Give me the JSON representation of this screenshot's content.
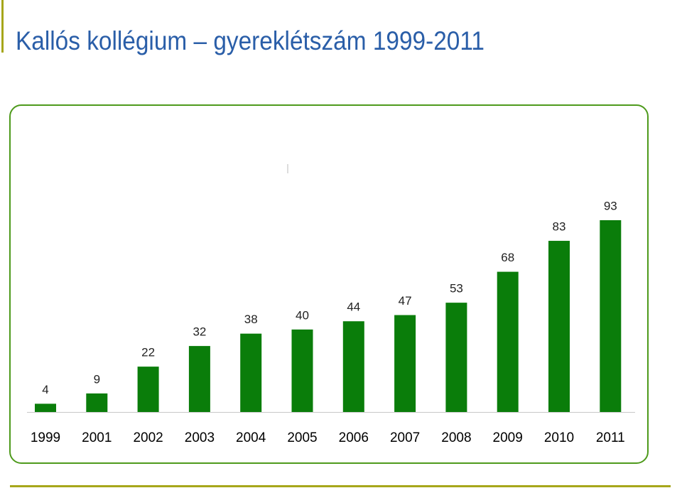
{
  "chart_data": {
    "type": "bar",
    "title": "Kallós kollégium – gyereklétszám 1999-2011",
    "categories": [
      "1999",
      "2001",
      "2002",
      "2003",
      "2004",
      "2005",
      "2006",
      "2007",
      "2008",
      "2009",
      "2010",
      "2011"
    ],
    "values": [
      4,
      9,
      22,
      32,
      38,
      40,
      44,
      47,
      53,
      68,
      83,
      93
    ],
    "color": "#0a7d0a"
  }
}
